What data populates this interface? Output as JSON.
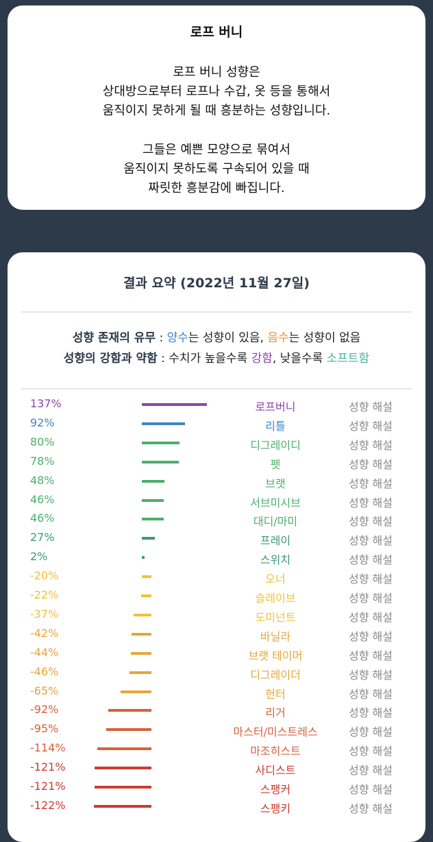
{
  "description": {
    "title": "로프 버니",
    "paragraph1": [
      "로프 버니 성향은",
      "상대방으로부터 로프나 수갑, 옷 등을 통해서",
      "움직이지 못하게 될 때 흥분하는 성향입니다."
    ],
    "paragraph2": [
      "그들은 예쁜 모양으로 묶여서",
      "움직이지 못하도록 구속되어 있을 때",
      "짜릿한 흥분감에 빠집니다."
    ]
  },
  "result": {
    "title": "결과 요약 (2022년 11월 27일)",
    "legend1": {
      "label": "성향 존재의 유무",
      "sep": " : ",
      "positive": "양수",
      "positive_desc": "는 성향이 있음, ",
      "negative": "음수",
      "negative_desc": "는 성향이 없음"
    },
    "legend2": {
      "label": "성향의 강함과 약함",
      "sep": " : 수치가 높을수록 ",
      "strong": "강함",
      "mid": ", 낮을수록 ",
      "soft": "소프트함"
    },
    "explain_label": "성향 해설",
    "rows": [
      {
        "pct": "137%",
        "value": 137,
        "name": "로프버니",
        "color": "#8e44ad"
      },
      {
        "pct": "92%",
        "value": 92,
        "name": "리틀",
        "color": "#3d85c6"
      },
      {
        "pct": "80%",
        "value": 80,
        "name": "디그레이디",
        "color": "#4caf6a"
      },
      {
        "pct": "78%",
        "value": 78,
        "name": "펫",
        "color": "#4caf6a"
      },
      {
        "pct": "48%",
        "value": 48,
        "name": "브랫",
        "color": "#4caf6a"
      },
      {
        "pct": "46%",
        "value": 46,
        "name": "서브미시브",
        "color": "#4caf6a"
      },
      {
        "pct": "46%",
        "value": 46,
        "name": "대디/마미",
        "color": "#4caf6a"
      },
      {
        "pct": "27%",
        "value": 27,
        "name": "프레이",
        "color": "#3a9a7a"
      },
      {
        "pct": "2%",
        "value": 2,
        "name": "스위치",
        "color": "#3a9a7a"
      },
      {
        "pct": "-20%",
        "value": -20,
        "name": "오너",
        "color": "#f1c232"
      },
      {
        "pct": "-22%",
        "value": -22,
        "name": "슬레이브",
        "color": "#f1c232"
      },
      {
        "pct": "-37%",
        "value": -37,
        "name": "도미넌트",
        "color": "#f1c232"
      },
      {
        "pct": "-42%",
        "value": -42,
        "name": "바닐라",
        "color": "#e6a63a"
      },
      {
        "pct": "-44%",
        "value": -44,
        "name": "브랫 테이머",
        "color": "#e6a63a"
      },
      {
        "pct": "-46%",
        "value": -46,
        "name": "디그레이더",
        "color": "#e6a63a"
      },
      {
        "pct": "-65%",
        "value": -65,
        "name": "헌터",
        "color": "#e6a63a"
      },
      {
        "pct": "-92%",
        "value": -92,
        "name": "리거",
        "color": "#d8603a"
      },
      {
        "pct": "-95%",
        "value": -95,
        "name": "마스터/미스트레스",
        "color": "#d8603a"
      },
      {
        "pct": "-114%",
        "value": -114,
        "name": "마조히스트",
        "color": "#d8603a"
      },
      {
        "pct": "-121%",
        "value": -121,
        "name": "사디스트",
        "color": "#cc3a2e"
      },
      {
        "pct": "-121%",
        "value": -121,
        "name": "스팽커",
        "color": "#cc3a2e"
      },
      {
        "pct": "-122%",
        "value": -122,
        "name": "스팽키",
        "color": "#cc3a2e"
      }
    ]
  }
}
